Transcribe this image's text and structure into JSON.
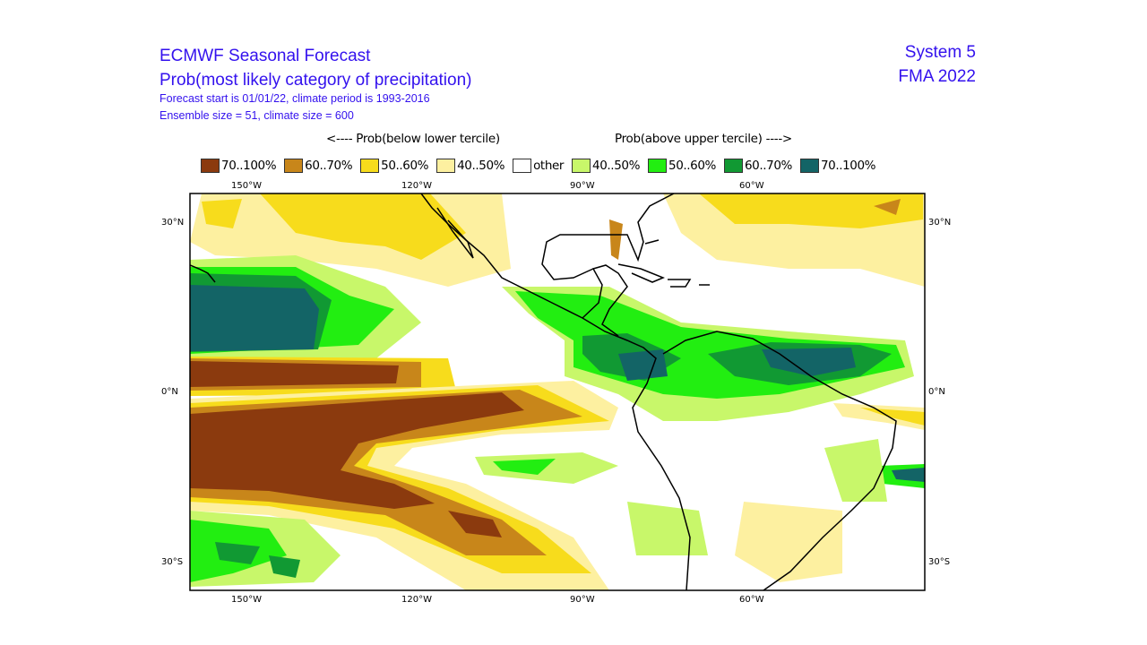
{
  "title": {
    "line1": "ECMWF Seasonal Forecast",
    "line2": "Prob(most likely category of precipitation)",
    "line3": "Forecast start is 01/01/22, climate period is 1993-2016",
    "line4": "Ensemble size = 51, climate size = 600"
  },
  "system": {
    "name": "System 5",
    "season": "FMA 2022"
  },
  "legend_headers": {
    "below": "<---- Prob(below lower tercile)",
    "above": "Prob(above upper tercile) ---->"
  },
  "legend": [
    {
      "label": "70..100%",
      "color": "#8b3a0e"
    },
    {
      "label": "60..70%",
      "color": "#c8861a"
    },
    {
      "label": "50..60%",
      "color": "#f7dc1c"
    },
    {
      "label": "40..50%",
      "color": "#fdf0a0"
    },
    {
      "label": "other",
      "color": "#ffffff"
    },
    {
      "label": "40..50%",
      "color": "#c8f76a"
    },
    {
      "label": "50..60%",
      "color": "#22ee11"
    },
    {
      "label": "60..70%",
      "color": "#119933"
    },
    {
      "label": "70..100%",
      "color": "#136466"
    }
  ],
  "axes": {
    "lon_labels": [
      "150°W",
      "120°W",
      "90°W",
      "60°W"
    ],
    "lat_labels": [
      "30°N",
      "0°N",
      "30°S"
    ]
  }
}
